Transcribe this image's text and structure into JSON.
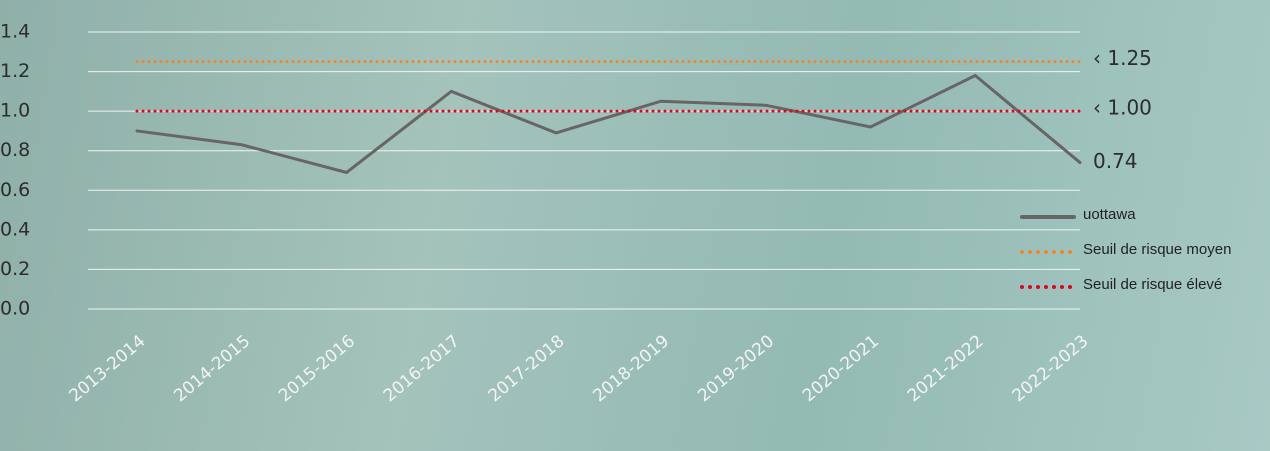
{
  "chart_data": {
    "type": "line",
    "categories": [
      "2013-2014",
      "2014-2015",
      "2015-2016",
      "2016-2017",
      "2017-2018",
      "2018-2019",
      "2019-2020",
      "2020-2021",
      "2021-2022",
      "2022-2023"
    ],
    "series": [
      {
        "name": "uottawa",
        "color": "#686565",
        "style": "solid",
        "values": [
          0.9,
          0.83,
          0.69,
          1.1,
          0.89,
          1.05,
          1.03,
          0.92,
          1.18,
          0.74
        ]
      },
      {
        "name": "Seuil de risque moyen",
        "color": "#f0862a",
        "style": "dotted",
        "values": [
          1.25,
          1.25,
          1.25,
          1.25,
          1.25,
          1.25,
          1.25,
          1.25,
          1.25,
          1.25
        ],
        "value_labels": [
          null,
          null,
          null,
          null,
          null,
          null,
          null,
          null,
          null,
          "‹ 1.25"
        ]
      },
      {
        "name": "Seuil de risque élevé",
        "color": "#e8001c",
        "style": "dotted",
        "values": [
          1.0,
          1.0,
          1.0,
          1.0,
          1.0,
          1.0,
          1.0,
          1.0,
          1.0,
          1.0
        ],
        "value_labels": [
          null,
          null,
          null,
          null,
          null,
          null,
          null,
          null,
          null,
          "‹ 1.00"
        ]
      }
    ],
    "ylim": [
      0,
      1.4
    ],
    "yticks": [
      {
        "value": 0,
        "label": "0.0"
      },
      0.2,
      0.4,
      0.6,
      0.8,
      {
        "value": 1,
        "label": "1.0"
      },
      1.2,
      1.4
    ],
    "grid": true,
    "legend": "right"
  }
}
